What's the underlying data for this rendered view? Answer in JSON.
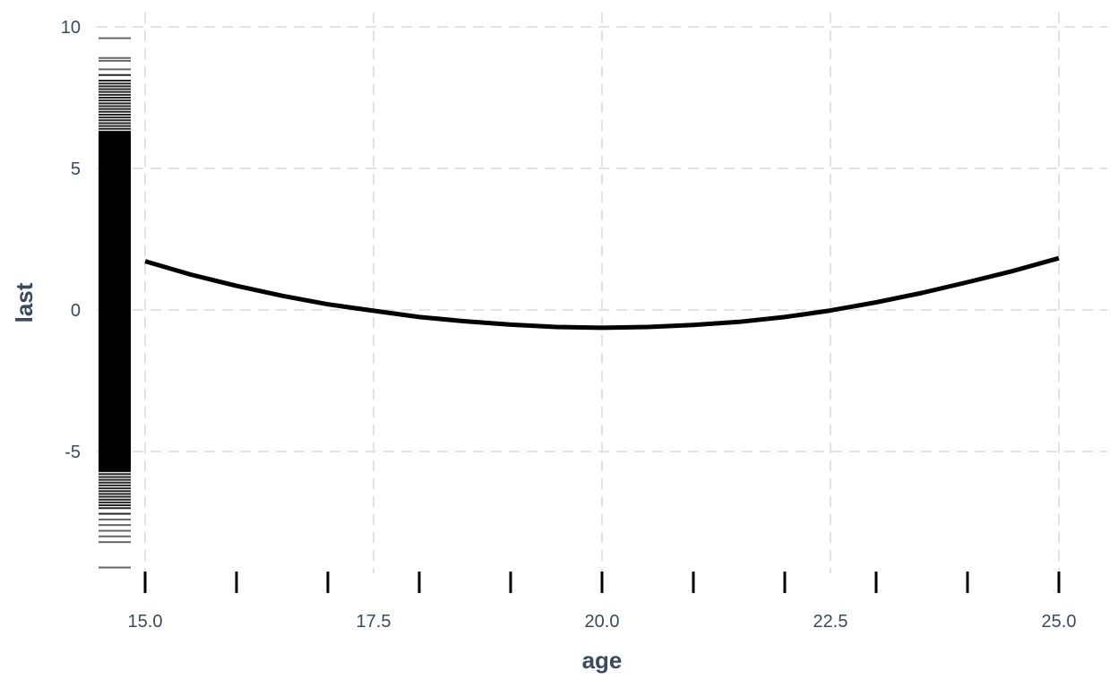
{
  "chart_data": {
    "type": "line",
    "xlabel": "age",
    "ylabel": "last",
    "xlim": [
      15.0,
      25.0
    ],
    "ylim": [
      -9,
      10
    ],
    "x_ticks": [
      {
        "value": 15.0,
        "label": "15.0"
      },
      {
        "value": 17.5,
        "label": "17.5"
      },
      {
        "value": 20.0,
        "label": "20.0"
      },
      {
        "value": 22.5,
        "label": "22.5"
      },
      {
        "value": 25.0,
        "label": "25.0"
      }
    ],
    "y_ticks": [
      {
        "value": 10,
        "label": "10"
      },
      {
        "value": 5,
        "label": "5"
      },
      {
        "value": 0,
        "label": "0"
      },
      {
        "value": -5,
        "label": "-5"
      }
    ],
    "grid": true,
    "series": [
      {
        "values_x": [
          15,
          15.5,
          16,
          16.5,
          17,
          17.5,
          18,
          18.5,
          19,
          19.5,
          20,
          20.5,
          21,
          21.5,
          22,
          22.5,
          23,
          23.5,
          24,
          24.5,
          25
        ],
        "values_y": [
          1.72,
          1.25,
          0.85,
          0.5,
          0.2,
          -0.03,
          -0.25,
          -0.4,
          -0.52,
          -0.6,
          -0.63,
          -0.6,
          -0.53,
          -0.42,
          -0.25,
          -0.02,
          0.27,
          0.6,
          0.98,
          1.38,
          1.83
        ],
        "color": "#000000"
      }
    ],
    "rug_x": [
      15,
      16,
      17,
      18,
      19,
      20,
      21,
      22,
      23,
      24,
      25
    ],
    "rug_y": [
      9.6,
      8.9,
      8.8,
      8.5,
      8.3,
      8.1,
      8.0,
      7.9,
      7.8,
      7.7,
      7.6,
      7.5,
      7.4,
      7.3,
      7.2,
      7.1,
      7.0,
      6.9,
      6.8,
      6.7,
      6.6,
      6.5,
      6.4,
      6.3,
      6.2,
      6.1,
      6.0,
      5.9,
      5.8,
      5.7,
      5.6,
      5.5,
      5.4,
      5.3,
      5.2,
      5.1,
      5.0,
      4.9,
      4.8,
      4.7,
      4.6,
      4.5,
      4.4,
      4.3,
      4.2,
      4.1,
      4.0,
      3.9,
      3.8,
      3.7,
      3.6,
      3.5,
      3.4,
      3.3,
      3.2,
      3.1,
      3.0,
      2.9,
      2.8,
      2.7,
      2.6,
      2.5,
      2.4,
      2.3,
      2.2,
      2.1,
      2.0,
      1.9,
      1.8,
      1.7,
      1.6,
      1.5,
      1.4,
      1.3,
      1.2,
      1.1,
      1.0,
      0.9,
      0.8,
      0.7,
      0.6,
      0.5,
      0.4,
      0.3,
      0.2,
      0.1,
      0.0,
      -0.1,
      -0.2,
      -0.3,
      -0.4,
      -0.5,
      -0.6,
      -0.7,
      -0.8,
      -0.9,
      -1.0,
      -1.1,
      -1.2,
      -1.3,
      -1.4,
      -1.5,
      -1.6,
      -1.7,
      -1.8,
      -1.9,
      -2.0,
      -2.1,
      -2.2,
      -2.3,
      -2.4,
      -2.5,
      -2.6,
      -2.7,
      -2.8,
      -2.9,
      -3.0,
      -3.1,
      -3.2,
      -3.3,
      -3.4,
      -3.5,
      -3.6,
      -3.7,
      -3.8,
      -3.9,
      -4.0,
      -4.1,
      -4.2,
      -4.3,
      -4.4,
      -4.5,
      -4.6,
      -4.7,
      -4.8,
      -4.9,
      -5.0,
      -5.1,
      -5.2,
      -5.3,
      -5.4,
      -5.5,
      -5.6,
      -5.7,
      -5.8,
      -5.9,
      -6.0,
      -6.1,
      -6.2,
      -6.3,
      -6.4,
      -6.5,
      -6.6,
      -6.7,
      -6.8,
      -6.9,
      -7.0,
      -7.2,
      -7.4,
      -7.6,
      -7.8,
      -8.0,
      -8.2,
      -9.1
    ]
  }
}
